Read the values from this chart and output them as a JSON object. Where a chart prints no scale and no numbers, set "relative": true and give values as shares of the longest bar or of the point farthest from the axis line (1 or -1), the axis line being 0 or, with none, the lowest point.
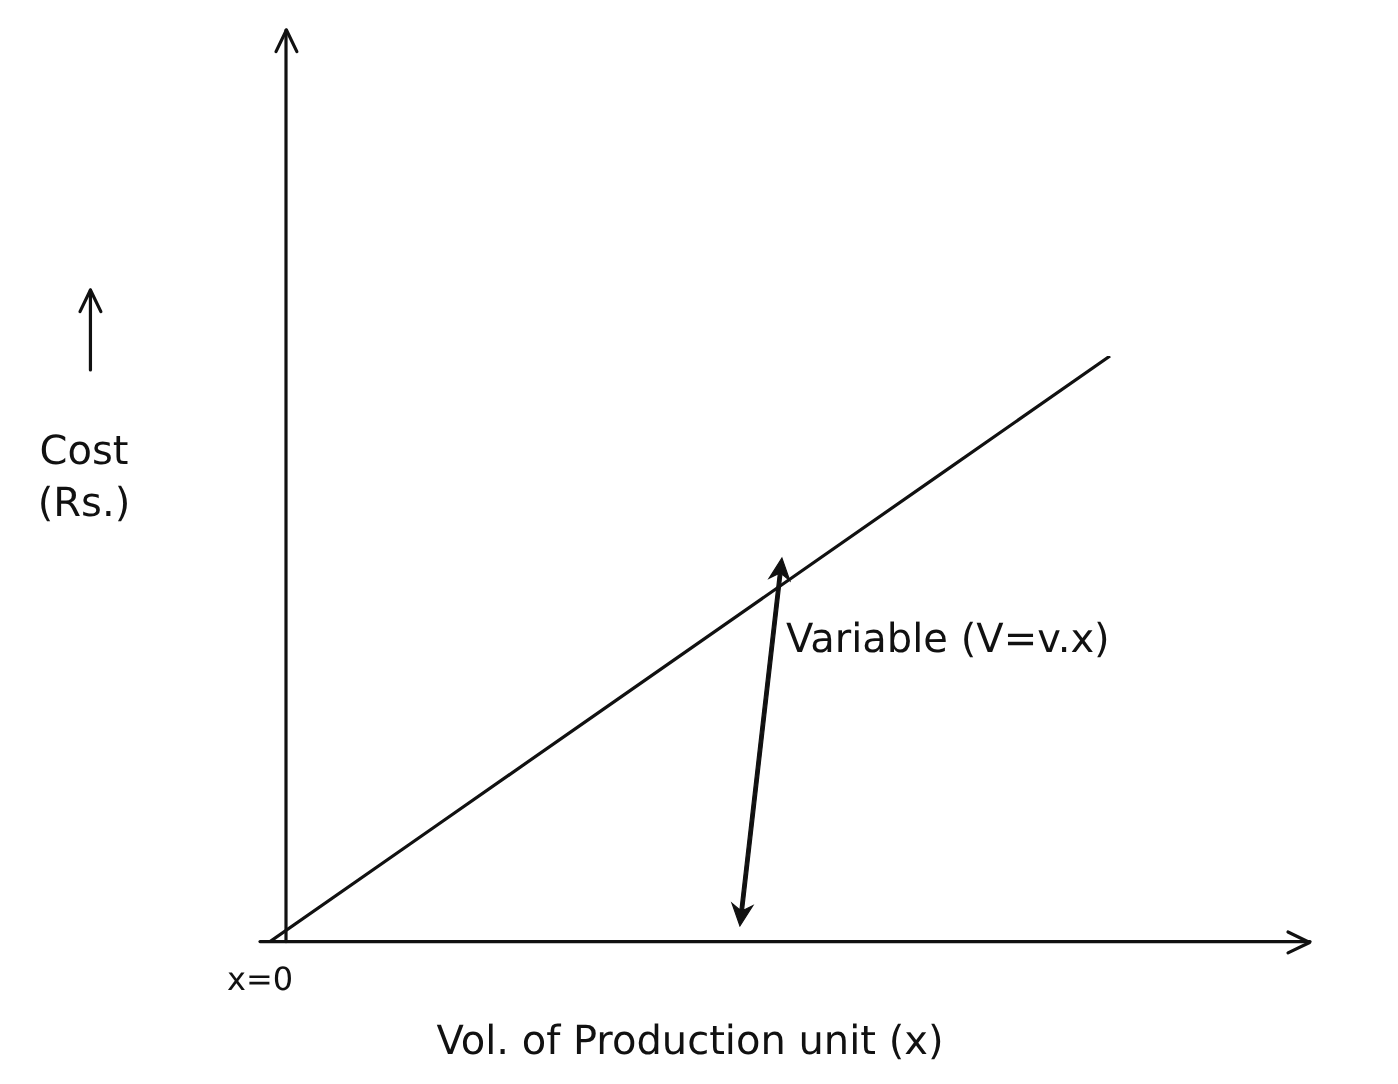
{
  "chart_data": {
    "type": "line",
    "relative": true,
    "xlabel": "Vol. of Production unit (x)",
    "ylabel": "Cost (Rs.)",
    "categories": [
      null,
      null,
      null,
      null,
      null,
      null
    ],
    "series": [
      {
        "color": "#111111",
        "values": [
          0,
          0.2,
          0.4,
          0.6,
          0.8,
          1
        ]
      }
    ],
    "annotations": [
      "Variable (V=v.x)",
      "x=0"
    ],
    "grid": false,
    "legend": false,
    "marker": "none",
    "line_style": "solid"
  }
}
